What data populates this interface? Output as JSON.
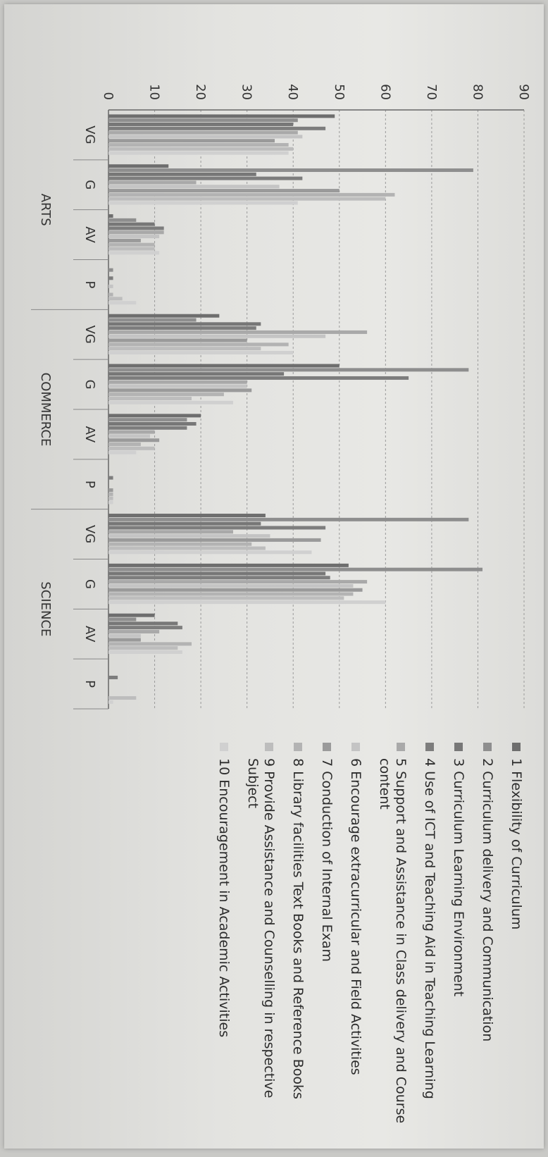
{
  "chart_data": {
    "type": "bar",
    "orientation": "vertical",
    "groups": [
      {
        "name": "ARTS",
        "categories": [
          "VG",
          "G",
          "AV",
          "P"
        ]
      },
      {
        "name": "COMMERCE",
        "categories": [
          "VG",
          "G",
          "AV",
          "P"
        ]
      },
      {
        "name": "SCIENCE",
        "categories": [
          "VG",
          "G",
          "AV",
          "P"
        ]
      }
    ],
    "ylim": [
      0,
      90
    ],
    "yticks": [
      0,
      10,
      20,
      30,
      40,
      50,
      60,
      70,
      80,
      90
    ],
    "grid": true,
    "legend_position": "right",
    "series": [
      {
        "name": "1 Flexibility of Curriculum",
        "color": "#6e6e6e",
        "values": [
          49,
          13,
          1,
          0,
          24,
          50,
          20,
          0,
          34,
          52,
          10,
          0
        ]
      },
      {
        "name": "2 Curriculum delivery and Communication",
        "color": "#8e8e8e",
        "values": [
          41,
          79,
          6,
          1,
          19,
          78,
          17,
          0,
          78,
          81,
          6,
          0
        ]
      },
      {
        "name": "3 Curriculum Learning Environment",
        "color": "#777777",
        "values": [
          40,
          32,
          10,
          0,
          33,
          38,
          19,
          0,
          33,
          47,
          15,
          0
        ]
      },
      {
        "name": "4 Use of ICT and Teaching Aid in Teaching Learning",
        "color": "#7d7d7d",
        "values": [
          47,
          42,
          12,
          1,
          32,
          65,
          17,
          1,
          47,
          48,
          16,
          2
        ]
      },
      {
        "name": "5 Support and Assistance in Class delivery and Course content",
        "color": "#a9a9a9",
        "values": [
          41,
          19,
          12,
          0,
          56,
          30,
          10,
          0,
          27,
          56,
          11,
          0
        ]
      },
      {
        "name": "6 Encourage extracurricular and Field Activities",
        "color": "#c4c4c4",
        "values": [
          42,
          37,
          11,
          1,
          47,
          30,
          9,
          0,
          35,
          53,
          7,
          0
        ]
      },
      {
        "name": "7 Conduction of Internal Exam",
        "color": "#9a9a9a",
        "values": [
          36,
          50,
          7,
          0,
          30,
          31,
          11,
          1,
          46,
          55,
          7,
          0
        ]
      },
      {
        "name": "8 Library facilities Text Books and Reference Books",
        "color": "#b3b3b3",
        "values": [
          39,
          62,
          10,
          1,
          39,
          25,
          7,
          1,
          31,
          53,
          18,
          0
        ]
      },
      {
        "name": "9 Provide Assistance and Counselling in respective Subject",
        "color": "#bdbdbd",
        "values": [
          40,
          60,
          10,
          3,
          33,
          18,
          10,
          1,
          34,
          51,
          15,
          6
        ]
      },
      {
        "name": "10 Encouragement in Academic Activities",
        "color": "#d0d0d0",
        "values": [
          39,
          41,
          11,
          6,
          40,
          27,
          6,
          1,
          44,
          60,
          16,
          1
        ]
      }
    ]
  }
}
